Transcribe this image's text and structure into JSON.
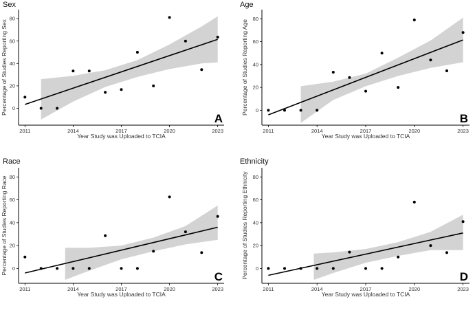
{
  "chart_data": [
    {
      "type": "scatter",
      "panel_letter": "A",
      "title": "Sex",
      "xlabel": "Year Study was Uploaded to TCIA",
      "ylabel": "Percentage of Studies Reporting Sex",
      "x_ticks": [
        2011,
        2014,
        2017,
        2020,
        2023
      ],
      "y_ticks": [
        0,
        20,
        40,
        60,
        80
      ],
      "xlim": [
        2010.6,
        2023.4
      ],
      "ylim": [
        -15,
        88
      ],
      "grid": false,
      "points": [
        {
          "x": 2011,
          "y": 10
        },
        {
          "x": 2012,
          "y": 0
        },
        {
          "x": 2013,
          "y": 0
        },
        {
          "x": 2014,
          "y": 33.3
        },
        {
          "x": 2015,
          "y": 33.3
        },
        {
          "x": 2016,
          "y": 14.3
        },
        {
          "x": 2017,
          "y": 16.7
        },
        {
          "x": 2018,
          "y": 50
        },
        {
          "x": 2019,
          "y": 20
        },
        {
          "x": 2020,
          "y": 81
        },
        {
          "x": 2021,
          "y": 60
        },
        {
          "x": 2022,
          "y": 34.5
        },
        {
          "x": 2023,
          "y": 63.5
        }
      ],
      "fit": {
        "x": [
          2011,
          2023
        ],
        "y": [
          3.5,
          61.5
        ]
      },
      "ci_band": {
        "x": [
          2012,
          2014,
          2016,
          2018,
          2020,
          2022,
          2023
        ],
        "lower": [
          -10,
          6,
          19,
          28,
          35,
          40,
          41
        ],
        "upper": [
          26,
          29,
          34,
          43,
          57,
          73,
          82
        ]
      }
    },
    {
      "type": "scatter",
      "panel_letter": "B",
      "title": "Age",
      "xlabel": "Year Study was Uploaded to TCIA",
      "ylabel": "Percentage of Studies Reporting Age",
      "x_ticks": [
        2011,
        2014,
        2017,
        2020,
        2023
      ],
      "y_ticks": [
        0,
        20,
        40,
        60,
        80
      ],
      "xlim": [
        2010.6,
        2023.4
      ],
      "ylim": [
        -13,
        88
      ],
      "grid": false,
      "points": [
        {
          "x": 2011,
          "y": 0
        },
        {
          "x": 2012,
          "y": 0
        },
        {
          "x": 2013,
          "y": 0
        },
        {
          "x": 2014,
          "y": 0
        },
        {
          "x": 2015,
          "y": 33.3
        },
        {
          "x": 2016,
          "y": 28.6
        },
        {
          "x": 2017,
          "y": 16.7
        },
        {
          "x": 2018,
          "y": 50
        },
        {
          "x": 2019,
          "y": 20
        },
        {
          "x": 2020,
          "y": 79
        },
        {
          "x": 2021,
          "y": 44
        },
        {
          "x": 2022,
          "y": 34.5
        },
        {
          "x": 2023,
          "y": 68
        }
      ],
      "fit": {
        "x": [
          2011,
          2023
        ],
        "y": [
          -4,
          61.5
        ]
      },
      "ci_band": {
        "x": [
          2013,
          2015,
          2017,
          2019,
          2021,
          2023
        ],
        "lower": [
          -11,
          9,
          21,
          30,
          37,
          42
        ],
        "upper": [
          21,
          25,
          32,
          46,
          61,
          81
        ]
      }
    },
    {
      "type": "scatter",
      "panel_letter": "C",
      "title": "Race",
      "xlabel": "Year Study was Uploaded to TCIA",
      "ylabel": "Percentage of Studies Reporting Race",
      "x_ticks": [
        2011,
        2014,
        2017,
        2020,
        2023
      ],
      "y_ticks": [
        0,
        20,
        40,
        60,
        80
      ],
      "xlim": [
        2010.6,
        2023.4
      ],
      "ylim": [
        -13,
        88
      ],
      "grid": false,
      "points": [
        {
          "x": 2011,
          "y": 10
        },
        {
          "x": 2012,
          "y": 0
        },
        {
          "x": 2013,
          "y": 0
        },
        {
          "x": 2014,
          "y": 0
        },
        {
          "x": 2015,
          "y": 0
        },
        {
          "x": 2016,
          "y": 28.6
        },
        {
          "x": 2017,
          "y": 0
        },
        {
          "x": 2018,
          "y": 0
        },
        {
          "x": 2019,
          "y": 15
        },
        {
          "x": 2020,
          "y": 62.5
        },
        {
          "x": 2021,
          "y": 32
        },
        {
          "x": 2022,
          "y": 13.8
        },
        {
          "x": 2023,
          "y": 45.5
        }
      ],
      "fit": {
        "x": [
          2011,
          2023
        ],
        "y": [
          -4,
          36
        ]
      },
      "ci_band": {
        "x": [
          2013.5,
          2015,
          2017,
          2019,
          2021,
          2023
        ],
        "lower": [
          -10,
          -2,
          8,
          15,
          21,
          25
        ],
        "upper": [
          18,
          18,
          20,
          27,
          37,
          55
        ]
      }
    },
    {
      "type": "scatter",
      "panel_letter": "D",
      "title": "Ethnicity",
      "xlabel": "Year Study was Uploaded to TCIA",
      "ylabel": "Percentage of Studies Reporting Ethnicity",
      "x_ticks": [
        2011,
        2014,
        2017,
        2020,
        2023
      ],
      "y_ticks": [
        0,
        20,
        40,
        60,
        80
      ],
      "xlim": [
        2010.6,
        2023.4
      ],
      "ylim": [
        -13,
        88
      ],
      "grid": false,
      "points": [
        {
          "x": 2011,
          "y": 0
        },
        {
          "x": 2012,
          "y": 0
        },
        {
          "x": 2013,
          "y": 0
        },
        {
          "x": 2014,
          "y": 0
        },
        {
          "x": 2015,
          "y": 0
        },
        {
          "x": 2016,
          "y": 14.3
        },
        {
          "x": 2017,
          "y": 0
        },
        {
          "x": 2018,
          "y": 0
        },
        {
          "x": 2019,
          "y": 10
        },
        {
          "x": 2020,
          "y": 58
        },
        {
          "x": 2021,
          "y": 20
        },
        {
          "x": 2022,
          "y": 13.8
        },
        {
          "x": 2023,
          "y": 41
        }
      ],
      "fit": {
        "x": [
          2011,
          2023
        ],
        "y": [
          -6,
          31
        ]
      },
      "ci_band": {
        "x": [
          2013.8,
          2015,
          2017,
          2019,
          2021,
          2023
        ],
        "lower": [
          -10,
          -4,
          5,
          11,
          16,
          16
        ],
        "upper": [
          13,
          14,
          17,
          23,
          32,
          47
        ]
      }
    }
  ]
}
